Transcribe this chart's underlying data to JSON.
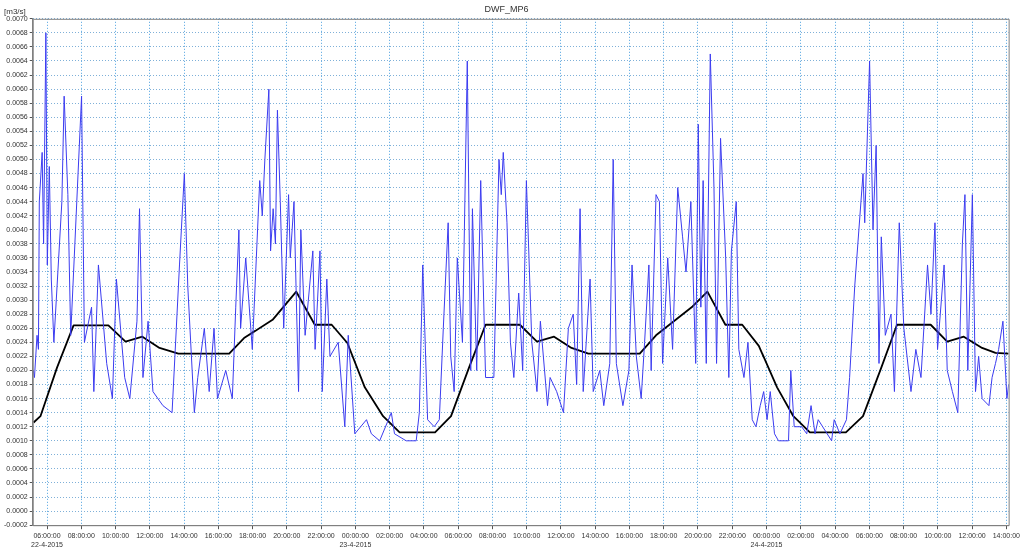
{
  "chart_data": {
    "type": "line",
    "title": "DWF_MP6",
    "ylabel": "[m3/s]",
    "grid": true,
    "legend": false,
    "marker": "none",
    "xlim": [
      "2015-04-22T05:10",
      "2015-04-24T14:08"
    ],
    "xticks": [
      {
        "value": "2015-04-22T06:00",
        "label": "06:00:00\n22-4-2015"
      },
      {
        "value": "2015-04-22T08:00",
        "label": "08:00:00"
      },
      {
        "value": "2015-04-22T10:00",
        "label": "10:00:00"
      },
      {
        "value": "2015-04-22T12:00",
        "label": "12:00:00"
      },
      {
        "value": "2015-04-22T14:00",
        "label": "14:00:00"
      },
      {
        "value": "2015-04-22T16:00",
        "label": "16:00:00"
      },
      {
        "value": "2015-04-22T18:00",
        "label": "18:00:00"
      },
      {
        "value": "2015-04-22T20:00",
        "label": "20:00:00"
      },
      {
        "value": "2015-04-22T22:00",
        "label": "22:00:00"
      },
      {
        "value": "2015-04-23T00:00",
        "label": "00:00:00\n23-4-2015"
      },
      {
        "value": "2015-04-23T02:00",
        "label": "02:00:00"
      },
      {
        "value": "2015-04-23T04:00",
        "label": "04:00:00"
      },
      {
        "value": "2015-04-23T06:00",
        "label": "06:00:00"
      },
      {
        "value": "2015-04-23T08:00",
        "label": "08:00:00"
      },
      {
        "value": "2015-04-23T10:00",
        "label": "10:00:00"
      },
      {
        "value": "2015-04-23T12:00",
        "label": "12:00:00"
      },
      {
        "value": "2015-04-23T14:00",
        "label": "14:00:00"
      },
      {
        "value": "2015-04-23T16:00",
        "label": "16:00:00"
      },
      {
        "value": "2015-04-23T18:00",
        "label": "18:00:00"
      },
      {
        "value": "2015-04-23T20:00",
        "label": "20:00:00"
      },
      {
        "value": "2015-04-23T22:00",
        "label": "22:00:00"
      },
      {
        "value": "2015-04-24T00:00",
        "label": "00:00:00\n24-4-2015"
      },
      {
        "value": "2015-04-24T02:00",
        "label": "02:00:00"
      },
      {
        "value": "2015-04-24T04:00",
        "label": "04:00:00"
      },
      {
        "value": "2015-04-24T06:00",
        "label": "06:00:00"
      },
      {
        "value": "2015-04-24T08:00",
        "label": "08:00:00"
      },
      {
        "value": "2015-04-24T10:00",
        "label": "10:00:00"
      },
      {
        "value": "2015-04-24T12:00",
        "label": "12:00:00"
      },
      {
        "value": "2015-04-24T14:00",
        "label": "14:00:00"
      }
    ],
    "ylim": [
      -0.0002,
      0.007
    ],
    "yticks": [
      {
        "value": -0.0002,
        "label": "-0.0002"
      },
      {
        "value": 0,
        "label": "0.0000"
      },
      {
        "value": 0.0002,
        "label": "0.0002"
      },
      {
        "value": 0.0004,
        "label": "0.0004"
      },
      {
        "value": 0.0006,
        "label": "0.0006"
      },
      {
        "value": 0.0008,
        "label": "0.0008"
      },
      {
        "value": 0.001,
        "label": "0.0010"
      },
      {
        "value": 0.0012,
        "label": "0.0012"
      },
      {
        "value": 0.0014,
        "label": "0.0014"
      },
      {
        "value": 0.0016,
        "label": "0.0016"
      },
      {
        "value": 0.0018,
        "label": "0.0018"
      },
      {
        "value": 0.002,
        "label": "0.0020"
      },
      {
        "value": 0.0022,
        "label": "0.0022"
      },
      {
        "value": 0.0024,
        "label": "0.0024"
      },
      {
        "value": 0.0026,
        "label": "0.0026"
      },
      {
        "value": 0.0028,
        "label": "0.0028"
      },
      {
        "value": 0.003,
        "label": "0.0030"
      },
      {
        "value": 0.0032,
        "label": "0.0032"
      },
      {
        "value": 0.0034,
        "label": "0.0034"
      },
      {
        "value": 0.0036,
        "label": "0.0036"
      },
      {
        "value": 0.0038,
        "label": "0.0038"
      },
      {
        "value": 0.004,
        "label": "0.0040"
      },
      {
        "value": 0.0042,
        "label": "0.0042"
      },
      {
        "value": 0.0044,
        "label": "0.0044"
      },
      {
        "value": 0.0046,
        "label": "0.0046"
      },
      {
        "value": 0.0048,
        "label": "0.0048"
      },
      {
        "value": 0.005,
        "label": "0.0050"
      },
      {
        "value": 0.0052,
        "label": "0.0052"
      },
      {
        "value": 0.0054,
        "label": "0.0054"
      },
      {
        "value": 0.0056,
        "label": "0.0056"
      },
      {
        "value": 0.0058,
        "label": "0.0058"
      },
      {
        "value": 0.006,
        "label": "0.0060"
      },
      {
        "value": 0.0062,
        "label": "0.0062"
      },
      {
        "value": 0.0064,
        "label": "0.0064"
      },
      {
        "value": 0.0066,
        "label": "0.0066"
      },
      {
        "value": 0.0068,
        "label": "0.0068"
      },
      {
        "value": 0.007,
        "label": "0.0070"
      }
    ],
    "series": [
      {
        "color": "#3c3cf0",
        "x": [
          "2015-04-22T05:12",
          "2015-04-22T05:16",
          "2015-04-22T05:25",
          "2015-04-22T05:30",
          "2015-04-22T05:33",
          "2015-04-22T05:43",
          "2015-04-22T05:48",
          "2015-04-22T05:56",
          "2015-04-22T06:01",
          "2015-04-22T06:08",
          "2015-04-22T06:15",
          "2015-04-22T06:24",
          "2015-04-22T06:52",
          "2015-04-22T07:00",
          "2015-04-22T07:13",
          "2015-04-22T07:23",
          "2015-04-22T08:01",
          "2015-04-22T08:11",
          "2015-04-22T08:36",
          "2015-04-22T08:44",
          "2015-04-22T09:00",
          "2015-04-22T09:29",
          "2015-04-22T09:49",
          "2015-04-22T10:03",
          "2015-04-22T10:32",
          "2015-04-22T10:50",
          "2015-04-22T11:15",
          "2015-04-22T11:24",
          "2015-04-22T11:36",
          "2015-04-22T11:54",
          "2015-04-22T12:11",
          "2015-04-22T12:46",
          "2015-04-22T13:18",
          "2015-04-22T13:44",
          "2015-04-22T14:01",
          "2015-04-22T14:13",
          "2015-04-22T14:36",
          "2015-04-22T14:48",
          "2015-04-22T15:11",
          "2015-04-22T15:28",
          "2015-04-22T15:45",
          "2015-04-22T15:57",
          "2015-04-22T16:26",
          "2015-04-22T16:49",
          "2015-04-22T17:01",
          "2015-04-22T17:12",
          "2015-04-22T17:18",
          "2015-04-22T17:36",
          "2015-04-22T17:59",
          "2015-04-22T18:25",
          "2015-04-22T18:34",
          "2015-04-22T18:43",
          "2015-04-22T18:57",
          "2015-04-22T19:03",
          "2015-04-22T19:12",
          "2015-04-22T19:20",
          "2015-04-22T19:27",
          "2015-04-22T19:37",
          "2015-04-22T19:49",
          "2015-04-22T20:06",
          "2015-04-22T20:12",
          "2015-04-22T20:25",
          "2015-04-22T20:41",
          "2015-04-22T20:49",
          "2015-04-22T21:04",
          "2015-04-22T21:31",
          "2015-04-22T21:39",
          "2015-04-22T21:56",
          "2015-04-22T22:04",
          "2015-04-22T22:20",
          "2015-04-22T22:31",
          "2015-04-22T23:00",
          "2015-04-22T23:23",
          "2015-04-22T23:35",
          "2015-04-22T23:58",
          "2015-04-23T00:39",
          "2015-04-23T00:56",
          "2015-04-23T01:25",
          "2015-04-23T02:06",
          "2015-04-23T02:17",
          "2015-04-23T02:58",
          "2015-04-23T03:33",
          "2015-04-23T03:44",
          "2015-04-23T03:56",
          "2015-04-23T04:13",
          "2015-04-23T04:36",
          "2015-04-23T04:54",
          "2015-04-23T05:08",
          "2015-04-23T05:25",
          "2015-04-23T05:34",
          "2015-04-23T05:46",
          "2015-04-23T05:57",
          "2015-04-23T06:15",
          "2015-04-23T06:32",
          "2015-04-23T06:44",
          "2015-04-23T06:50",
          "2015-04-23T07:05",
          "2015-04-23T07:19",
          "2015-04-23T07:36",
          "2015-04-23T08:05",
          "2015-04-23T08:23",
          "2015-04-23T08:31",
          "2015-04-23T08:38",
          "2015-04-23T08:51",
          "2015-04-23T09:03",
          "2015-04-23T09:15",
          "2015-04-23T09:32",
          "2015-04-23T09:46",
          "2015-04-23T09:59",
          "2015-04-23T10:18",
          "2015-04-23T10:36",
          "2015-04-23T10:48",
          "2015-04-23T11:13",
          "2015-04-23T11:22",
          "2015-04-23T11:45",
          "2015-04-23T12:09",
          "2015-04-23T12:26",
          "2015-04-23T12:43",
          "2015-04-23T12:55",
          "2015-04-23T13:07",
          "2015-04-23T13:18",
          "2015-04-23T13:42",
          "2015-04-23T13:53",
          "2015-04-23T14:16",
          "2015-04-23T14:30",
          "2015-04-23T14:51",
          "2015-04-23T15:03",
          "2015-04-23T15:14",
          "2015-04-23T15:37",
          "2015-04-23T15:58",
          "2015-04-23T16:09",
          "2015-04-23T16:24",
          "2015-04-23T16:41",
          "2015-04-23T16:53",
          "2015-04-23T17:08",
          "2015-04-23T17:16",
          "2015-04-23T17:33",
          "2015-04-23T17:45",
          "2015-04-23T17:56",
          "2015-04-23T18:14",
          "2015-04-23T18:31",
          "2015-04-23T18:49",
          "2015-04-23T19:06",
          "2015-04-23T19:18",
          "2015-04-23T19:35",
          "2015-04-23T19:52",
          "2015-04-23T20:01",
          "2015-04-23T20:10",
          "2015-04-23T20:18",
          "2015-04-23T20:29",
          "2015-04-23T20:43",
          "2015-04-23T20:56",
          "2015-04-23T21:05",
          "2015-04-23T21:19",
          "2015-04-23T21:37",
          "2015-04-23T21:48",
          "2015-04-23T21:57",
          "2015-04-23T22:14",
          "2015-04-23T22:23",
          "2015-04-23T22:41",
          "2015-04-23T22:55",
          "2015-04-23T23:10",
          "2015-04-23T23:23",
          "2015-04-23T23:38",
          "2015-04-23T23:50",
          "2015-04-24T00:02",
          "2015-04-24T00:13",
          "2015-04-24T00:28",
          "2015-04-24T00:42",
          "2015-04-24T01:17",
          "2015-04-24T01:25",
          "2015-04-24T01:37",
          "2015-04-24T02:03",
          "2015-04-24T02:21",
          "2015-04-24T02:36",
          "2015-04-24T02:50",
          "2015-04-24T03:01",
          "2015-04-24T03:48",
          "2015-04-24T03:57",
          "2015-04-24T04:17",
          "2015-04-24T04:40",
          "2015-04-24T04:51",
          "2015-04-24T05:09",
          "2015-04-24T05:38",
          "2015-04-24T05:44",
          "2015-04-24T06:01",
          "2015-04-24T06:13",
          "2015-04-24T06:24",
          "2015-04-24T06:34",
          "2015-04-24T06:42",
          "2015-04-24T06:56",
          "2015-04-24T07:16",
          "2015-04-24T07:28",
          "2015-04-24T07:45",
          "2015-04-24T08:01",
          "2015-04-24T08:26",
          "2015-04-24T08:43",
          "2015-04-24T09:01",
          "2015-04-24T09:24",
          "2015-04-24T09:36",
          "2015-04-24T09:50",
          "2015-04-24T09:59",
          "2015-04-24T10:22",
          "2015-04-24T10:33",
          "2015-04-24T10:51",
          "2015-04-24T11:10",
          "2015-04-24T11:26",
          "2015-04-24T11:35",
          "2015-04-24T11:45",
          "2015-04-24T12:01",
          "2015-04-24T12:12",
          "2015-04-24T12:23",
          "2015-04-24T12:35",
          "2015-04-24T12:59",
          "2015-04-24T13:10",
          "2015-04-24T13:22",
          "2015-04-24T13:33",
          "2015-04-24T13:48",
          "2015-04-24T14:02",
          "2015-04-24T14:08"
        ],
        "values": [
          0.002,
          0.0019,
          0.0025,
          0.0023,
          0.0044,
          0.0051,
          0.0038,
          0.0068,
          0.0035,
          0.0049,
          0.0033,
          0.0024,
          0.0044,
          0.0059,
          0.0045,
          0.0025,
          0.0059,
          0.0024,
          0.0029,
          0.0017,
          0.0035,
          0.0021,
          0.0016,
          0.0033,
          0.0019,
          0.0016,
          0.0027,
          0.0043,
          0.0019,
          0.0027,
          0.0017,
          0.0015,
          0.0014,
          0.0035,
          0.0048,
          0.0032,
          0.0014,
          0.0019,
          0.0026,
          0.0017,
          0.0026,
          0.0016,
          0.002,
          0.0016,
          0.0029,
          0.004,
          0.0026,
          0.0036,
          0.0023,
          0.0047,
          0.0042,
          0.005,
          0.006,
          0.0037,
          0.0043,
          0.0038,
          0.0057,
          0.0044,
          0.0026,
          0.0045,
          0.0036,
          0.0044,
          0.0017,
          0.004,
          0.0025,
          0.0037,
          0.0023,
          0.0037,
          0.0017,
          0.0033,
          0.0022,
          0.0024,
          0.0012,
          0.0025,
          0.0011,
          0.0013,
          0.0011,
          0.001,
          0.0014,
          0.0011,
          0.001,
          0.001,
          0.0014,
          0.0035,
          0.0013,
          0.0012,
          0.0013,
          0.0026,
          0.0041,
          0.0022,
          0.0017,
          0.0036,
          0.0024,
          0.0064,
          0.002,
          0.0043,
          0.002,
          0.0047,
          0.0019,
          0.0019,
          0.005,
          0.0045,
          0.0051,
          0.0041,
          0.0024,
          0.0019,
          0.0031,
          0.002,
          0.0047,
          0.0024,
          0.0017,
          0.0027,
          0.0015,
          0.0019,
          0.0017,
          0.0014,
          0.0026,
          0.0028,
          0.0018,
          0.0043,
          0.0017,
          0.0033,
          0.0017,
          0.002,
          0.0015,
          0.0021,
          0.005,
          0.0021,
          0.0015,
          0.002,
          0.0035,
          0.0022,
          0.0016,
          0.0024,
          0.0035,
          0.002,
          0.0045,
          0.0044,
          0.0021,
          0.0036,
          0.0023,
          0.0046,
          0.0039,
          0.0034,
          0.0044,
          0.0021,
          0.0055,
          0.0029,
          0.0047,
          0.0021,
          0.0065,
          0.0046,
          0.0021,
          0.0053,
          0.0036,
          0.0019,
          0.0037,
          0.0044,
          0.0023,
          0.0019,
          0.0024,
          0.0013,
          0.0012,
          0.0015,
          0.0017,
          0.0013,
          0.0017,
          0.0011,
          0.001,
          0.001,
          0.002,
          0.0012,
          0.0012,
          0.0011,
          0.0015,
          0.0011,
          0.0013,
          0.001,
          0.0013,
          0.0011,
          0.0013,
          0.0019,
          0.0032,
          0.0048,
          0.0041,
          0.0064,
          0.004,
          0.0052,
          0.0021,
          0.0039,
          0.0025,
          0.0028,
          0.0017,
          0.0041,
          0.0026,
          0.0017,
          0.0023,
          0.0019,
          0.0035,
          0.0028,
          0.0041,
          0.0023,
          0.0035,
          0.002,
          0.0017,
          0.0014,
          0.0038,
          0.0045,
          0.002,
          0.0045,
          0.0017,
          0.0022,
          0.0016,
          0.0015,
          0.0019,
          0.0021,
          0.0023,
          0.0027,
          0.0016,
          0.0018
        ]
      },
      {
        "color": "#000000",
        "x": [
          "2015-04-22T05:13",
          "2015-04-22T05:37",
          "2015-04-22T06:35",
          "2015-04-22T07:33",
          "2015-04-22T09:35",
          "2015-04-22T10:35",
          "2015-04-22T11:34",
          "2015-04-22T12:34",
          "2015-04-22T13:40",
          "2015-04-22T16:38",
          "2015-04-22T17:30",
          "2015-04-22T19:10",
          "2015-04-22T20:33",
          "2015-04-22T21:38",
          "2015-04-22T22:37",
          "2015-04-22T23:32",
          "2015-04-23T00:33",
          "2015-04-23T01:37",
          "2015-04-23T02:35",
          "2015-04-23T04:39",
          "2015-04-23T05:35",
          "2015-04-23T06:38",
          "2015-04-23T07:36",
          "2015-04-23T09:36",
          "2015-04-23T10:36",
          "2015-04-23T11:36",
          "2015-04-23T12:37",
          "2015-04-23T13:36",
          "2015-04-23T16:36",
          "2015-04-23T17:33",
          "2015-04-23T19:41",
          "2015-04-23T20:33",
          "2015-04-23T21:36",
          "2015-04-23T22:35",
          "2015-04-23T23:33",
          "2015-04-24T00:37",
          "2015-04-24T01:34",
          "2015-04-24T02:32",
          "2015-04-24T04:38",
          "2015-04-24T05:38",
          "2015-04-24T06:42",
          "2015-04-24T07:37",
          "2015-04-24T09:35",
          "2015-04-24T10:33",
          "2015-04-24T11:31",
          "2015-04-24T12:35",
          "2015-04-24T13:22",
          "2015-04-24T14:08"
        ],
        "values": [
          0.00126,
          0.00135,
          0.00204,
          0.00264,
          0.00264,
          0.00241,
          0.00248,
          0.00232,
          0.00224,
          0.00224,
          0.00246,
          0.00272,
          0.00312,
          0.00265,
          0.00265,
          0.00239,
          0.00176,
          0.00135,
          0.00112,
          0.00112,
          0.00135,
          0.00204,
          0.00265,
          0.00265,
          0.00241,
          0.00248,
          0.00232,
          0.00224,
          0.00224,
          0.0025,
          0.00291,
          0.00312,
          0.00265,
          0.00265,
          0.00235,
          0.00176,
          0.00135,
          0.00112,
          0.00112,
          0.00135,
          0.00204,
          0.00265,
          0.00265,
          0.00241,
          0.00248,
          0.00232,
          0.00225,
          0.00224
        ]
      }
    ]
  }
}
